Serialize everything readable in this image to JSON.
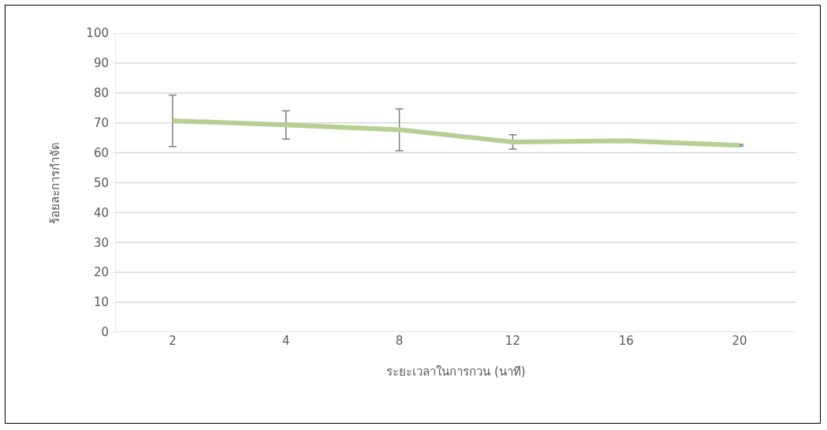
{
  "chart_data": {
    "type": "line",
    "xlabel": "ระยะเวลาในการกวน (นาที)",
    "ylabel": "ร้อยละการกำจัด",
    "categories": [
      "2",
      "4",
      "8",
      "12",
      "16",
      "20"
    ],
    "series": [
      {
        "color": "#b6cf92",
        "values": [
          70.7,
          69.3,
          67.7,
          63.6,
          64,
          62.5
        ],
        "errors": [
          8.6,
          4.7,
          7,
          2.4,
          null,
          0.3
        ]
      }
    ],
    "ylim": [
      0,
      100
    ],
    "yticks": [
      0,
      10,
      20,
      30,
      40,
      50,
      60,
      70,
      80,
      90,
      100
    ],
    "grid": "y",
    "marker": "none",
    "line_style": "solid"
  }
}
